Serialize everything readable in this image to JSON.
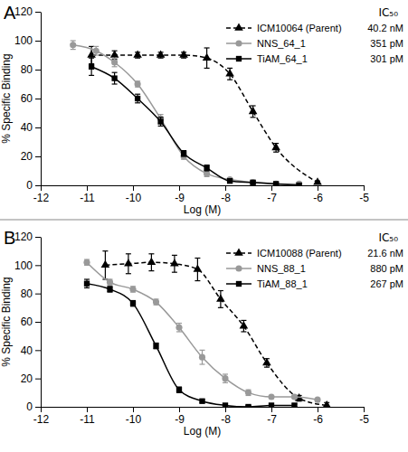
{
  "chart_data": [
    {
      "type": "line",
      "title": "A",
      "x_label": "Log (M)",
      "y_label": "% Specific Binding",
      "legend_title": "IC₅₀",
      "legend": "top-right",
      "xlim": [
        -12,
        -5
      ],
      "xticks": [
        -12,
        -11,
        -10,
        -9,
        -8,
        -7,
        -6,
        -5
      ],
      "ylim": [
        0,
        120
      ],
      "yticks": [
        0,
        20,
        40,
        60,
        80,
        100,
        120
      ],
      "series": [
        {
          "name": "ICM10064 (Parent)",
          "ic50": "40.2 nM",
          "color": "#000000",
          "marker": "triangle",
          "line_style": "dashed",
          "x": [
            -10.9,
            -10.4,
            -9.9,
            -9.4,
            -8.9,
            -8.4,
            -7.9,
            -7.4,
            -6.9,
            -6.0
          ],
          "values": [
            90,
            90,
            90,
            90,
            90,
            88,
            77,
            51,
            26,
            2
          ],
          "errors": [
            6,
            3,
            2,
            2,
            2,
            7,
            4,
            4,
            3,
            1
          ]
        },
        {
          "name": "NNS_64_1",
          "ic50": "351 pM",
          "color": "#999999",
          "marker": "circle",
          "line_style": "solid",
          "x": [
            -11.3,
            -10.8,
            -10.4,
            -9.9,
            -9.4,
            -8.9,
            -8.4,
            -7.9,
            -7.4,
            -6.9,
            -6.4
          ],
          "values": [
            97,
            93,
            85,
            70,
            46,
            20,
            8,
            4,
            2,
            1,
            1
          ],
          "errors": [
            3,
            3,
            3,
            2,
            3,
            2,
            2,
            1,
            1,
            1,
            1
          ]
        },
        {
          "name": "TiAM_64_1",
          "ic50": "301 pM",
          "color": "#000000",
          "marker": "square",
          "line_style": "solid",
          "x": [
            -10.9,
            -10.4,
            -9.9,
            -9.4,
            -8.9,
            -8.4,
            -7.9,
            -7.4,
            -6.9,
            -6.4
          ],
          "values": [
            82,
            74,
            60,
            44,
            22,
            12,
            3,
            2,
            1,
            0
          ],
          "errors": [
            6,
            4,
            3,
            3,
            2,
            2,
            1,
            1,
            1,
            1
          ]
        }
      ]
    },
    {
      "type": "line",
      "title": "B",
      "x_label": "Log (M)",
      "y_label": "% Specific Binding",
      "legend_title": "IC₅₀",
      "legend": "top-right",
      "xlim": [
        -12,
        -5
      ],
      "xticks": [
        -12,
        -11,
        -10,
        -9,
        -8,
        -7,
        -6,
        -5
      ],
      "ylim": [
        0,
        120
      ],
      "yticks": [
        0,
        20,
        40,
        60,
        80,
        100,
        120
      ],
      "series": [
        {
          "name": "ICM10088 (Parent)",
          "ic50": "21.6 nM",
          "color": "#000000",
          "marker": "triangle",
          "line_style": "dashed",
          "x": [
            -10.6,
            -10.1,
            -9.6,
            -9.1,
            -8.6,
            -8.1,
            -7.6,
            -7.1,
            -6.4,
            -5.8
          ],
          "values": [
            100,
            101,
            102,
            101,
            97,
            76,
            57,
            31,
            6,
            1
          ],
          "errors": [
            10,
            7,
            6,
            6,
            8,
            6,
            4,
            3,
            2,
            2
          ]
        },
        {
          "name": "NNS_88_1",
          "ic50": "880 pM",
          "color": "#999999",
          "marker": "circle",
          "line_style": "solid",
          "x": [
            -11.0,
            -10.5,
            -10.0,
            -9.5,
            -9.0,
            -8.5,
            -8.0,
            -7.5,
            -7.0,
            -6.5,
            -6.0
          ],
          "values": [
            102,
            88,
            83,
            74,
            56,
            35,
            20,
            10,
            7,
            7,
            5
          ],
          "errors": [
            2,
            2,
            2,
            2,
            3,
            5,
            3,
            2,
            1,
            1,
            1
          ]
        },
        {
          "name": "TiAM_88_1",
          "ic50": "267 pM",
          "color": "#000000",
          "marker": "square",
          "line_style": "solid",
          "x": [
            -11.0,
            -10.5,
            -10.0,
            -9.5,
            -9.0,
            -8.5,
            -8.0,
            -7.5,
            -7.0,
            -6.5
          ],
          "values": [
            87,
            83,
            73,
            43,
            12,
            4,
            1,
            0,
            1,
            1
          ],
          "errors": [
            3,
            2,
            2,
            2,
            2,
            1,
            1,
            1,
            1,
            1
          ]
        }
      ]
    }
  ]
}
